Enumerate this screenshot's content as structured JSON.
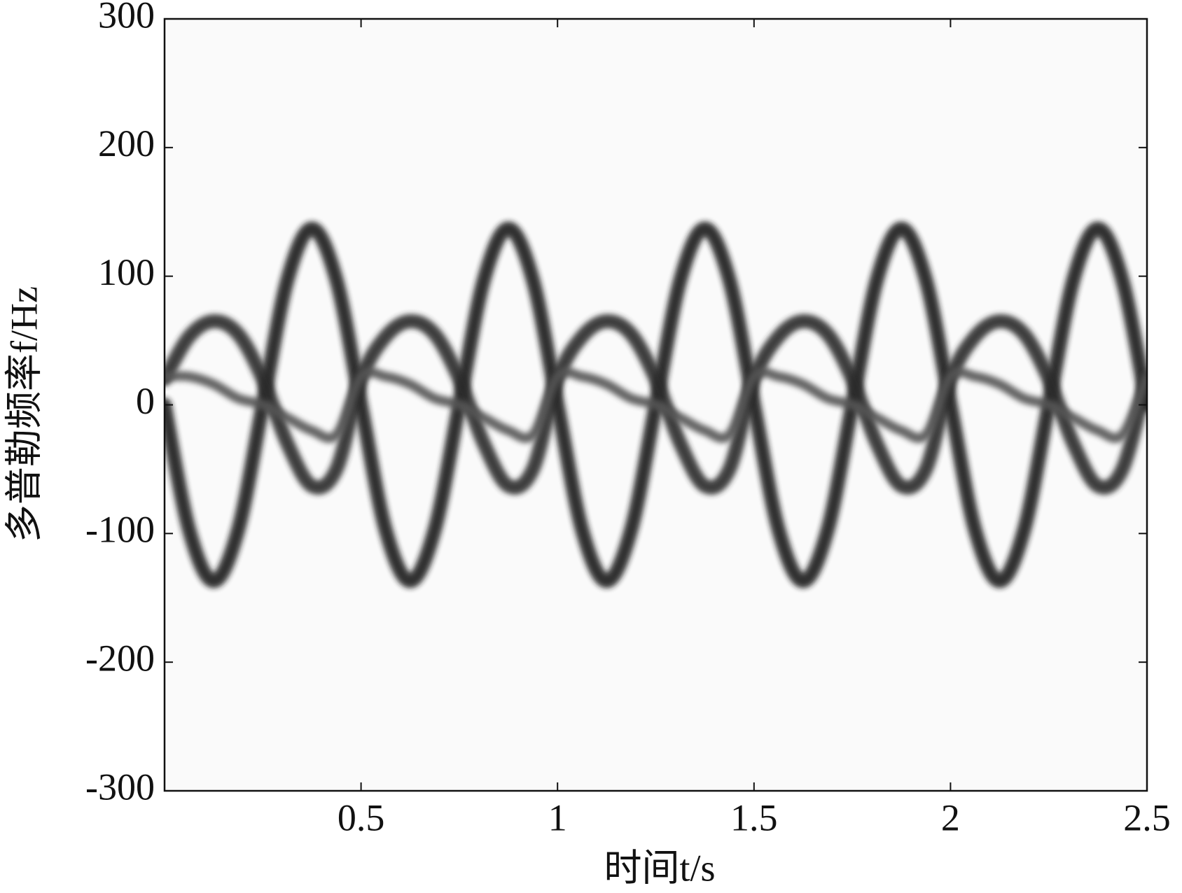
{
  "chart_data": {
    "type": "spectrogram",
    "xlabel": "时间t/s",
    "ylabel": "多普勒频率f/Hz",
    "xlim": [
      0,
      2.5
    ],
    "xticks": [
      0.5,
      1,
      1.5,
      2,
      2.5
    ],
    "ylim": [
      -300,
      300
    ],
    "yticks": [
      -300,
      -200,
      -100,
      0,
      100,
      200,
      300
    ],
    "x": [
      0,
      0.0625,
      0.125,
      0.1875,
      0.25,
      0.3125,
      0.375,
      0.4375,
      0.5,
      0.5625,
      0.625,
      0.6875,
      0.75,
      0.8125,
      0.875,
      0.9375,
      1,
      1.0625,
      1.125,
      1.1875,
      1.25,
      1.3125,
      1.375,
      1.4375,
      1.5,
      1.5625,
      1.625,
      1.6875,
      1.75,
      1.8125,
      1.875,
      1.9375,
      2,
      2.0625,
      2.125,
      2.1875,
      2.25,
      2.3125,
      2.375,
      2.4375,
      2.5
    ],
    "series": [
      {
        "color": "#1a1a1a",
        "values": [
          0,
          -97,
          -137,
          -97,
          0,
          97,
          137,
          97,
          0,
          -97,
          -137,
          -97,
          0,
          97,
          137,
          97,
          0,
          -97,
          -137,
          -97,
          0,
          97,
          137,
          97,
          0,
          -97,
          -137,
          -97,
          0,
          97,
          137,
          97,
          0,
          -97,
          -137,
          -97,
          0,
          97,
          137,
          97,
          0
        ]
      },
      {
        "color": "#2a2a2a",
        "values": [
          20,
          53,
          65,
          55,
          20,
          -30,
          -63,
          -50,
          20,
          53,
          65,
          55,
          20,
          -30,
          -63,
          -50,
          20,
          53,
          65,
          55,
          20,
          -30,
          -63,
          -50,
          20,
          53,
          65,
          55,
          20,
          -30,
          -63,
          -50,
          20,
          53,
          65,
          55,
          20,
          -30,
          -63,
          -50,
          20
        ]
      },
      {
        "color": "#555555",
        "values": [
          22,
          22,
          16,
          5,
          0,
          -10,
          -20,
          -23,
          22,
          22,
          16,
          5,
          0,
          -10,
          -20,
          -23,
          22,
          22,
          16,
          5,
          0,
          -10,
          -20,
          -23,
          22,
          22,
          16,
          5,
          0,
          -10,
          -20,
          -23,
          22,
          22,
          16,
          5,
          0,
          -10,
          -20,
          -23,
          22
        ]
      }
    ]
  }
}
